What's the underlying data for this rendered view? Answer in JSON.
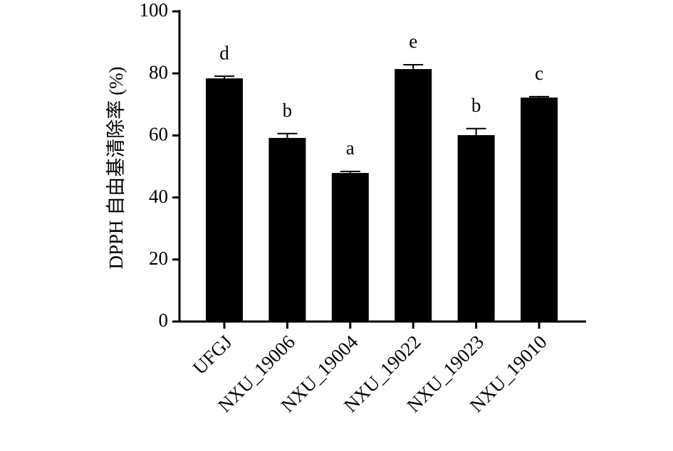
{
  "chart_data": {
    "type": "bar",
    "y_label": "DPPH 自由基清除率 (%)",
    "categories": [
      "UFGJ",
      "NXU_19006",
      "NXU_19004",
      "NXU_19022",
      "NXU_19023",
      "NXU_19010"
    ],
    "values": [
      78.4,
      59.2,
      47.9,
      81.4,
      60.1,
      72.2
    ],
    "errors": [
      0.7,
      1.4,
      0.5,
      1.4,
      2.1,
      0.3
    ],
    "annotations": [
      "d",
      "b",
      "a",
      "e",
      "b",
      "c"
    ],
    "color": "#000000",
    "ylim": [
      0,
      100
    ],
    "yticks": [
      0,
      20,
      40,
      60,
      80,
      100
    ],
    "grid": false
  }
}
